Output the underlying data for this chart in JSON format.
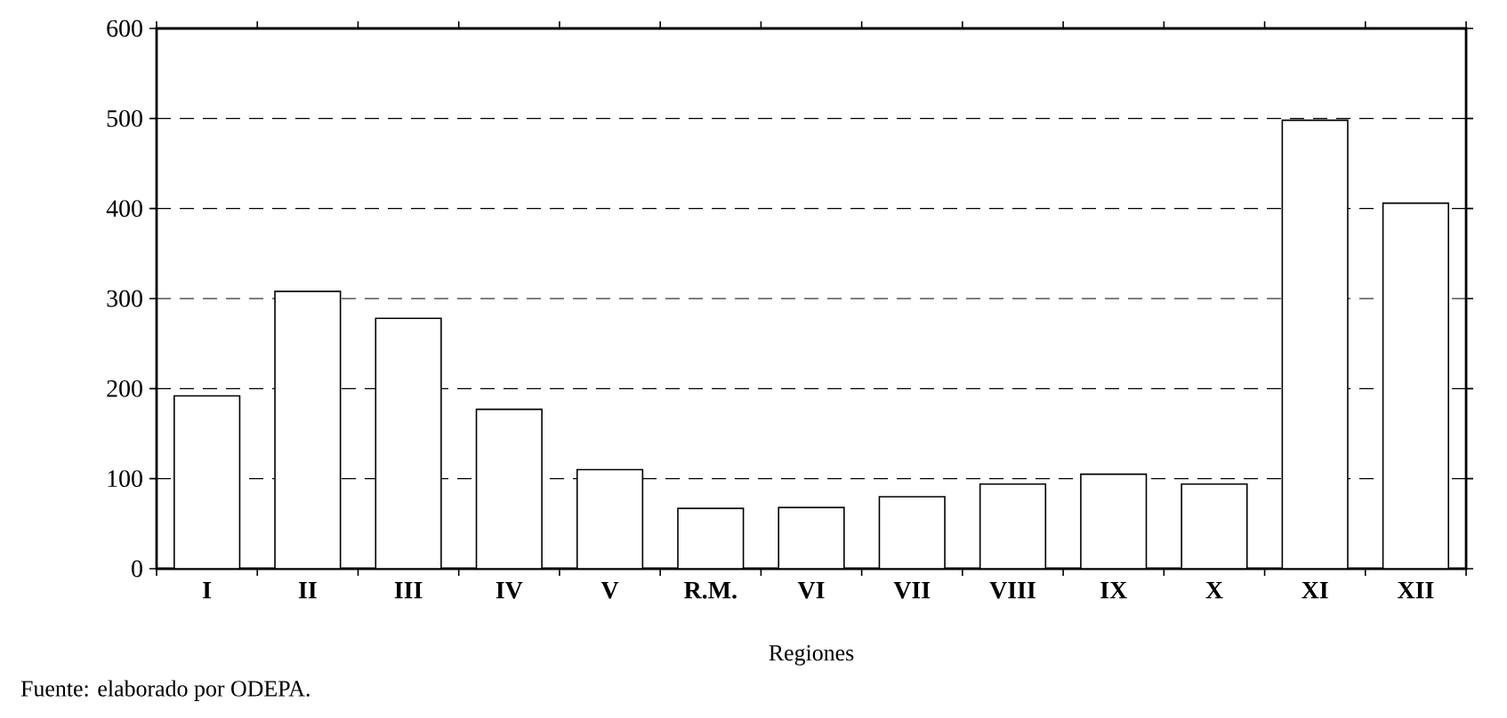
{
  "chart_data": {
    "type": "bar",
    "categories": [
      "I",
      "II",
      "III",
      "IV",
      "V",
      "R.M.",
      "VI",
      "VII",
      "VIII",
      "IX",
      "X",
      "XI",
      "XII"
    ],
    "values": [
      192,
      308,
      278,
      177,
      110,
      67,
      68,
      80,
      94,
      105,
      94,
      498,
      406
    ],
    "color": "#ffffff",
    "xlabel": "Regiones",
    "ylim": [
      0,
      600
    ],
    "yticks": [
      0,
      100,
      200,
      300,
      400,
      500,
      600
    ],
    "grid": "y",
    "annotations": [
      "Fuente: elaborado por ODEPA."
    ]
  }
}
